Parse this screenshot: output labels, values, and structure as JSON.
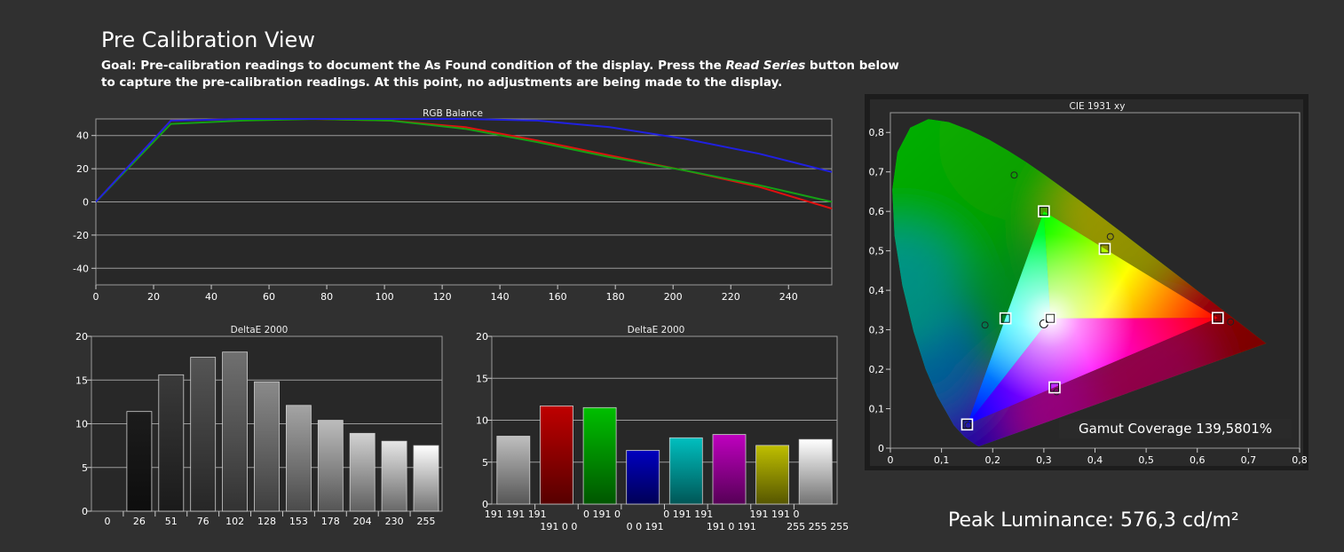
{
  "page": {
    "title": "Pre Calibration View",
    "goal_prefix": "Goal: Pre-calibration readings to document the As Found condition of the display. Press the ",
    "goal_emphasis": "Read Series",
    "goal_suffix": " button below to capture the pre-calibration readings. At this point, no adjustments are being made to the display.",
    "peak_luminance": "Peak Luminance: 576,3 cd/m²",
    "gamut_coverage": "Gamut Coverage 139,5801%"
  },
  "colors": {
    "background": "#303030",
    "plot_background": "#282828",
    "grid": "#9a9a9a",
    "red": "#e01010",
    "green": "#15a015",
    "blue": "#2020e0"
  },
  "chart_data": [
    {
      "type": "line",
      "title": "RGB Balance",
      "xlim": [
        0,
        255
      ],
      "ylim": [
        -50,
        50
      ],
      "xticks": [
        0,
        20,
        40,
        60,
        80,
        100,
        120,
        140,
        160,
        180,
        200,
        220,
        240
      ],
      "yticks": [
        40,
        20,
        0,
        -20,
        -40
      ],
      "grid": true,
      "series": [
        {
          "color": "#e01010",
          "x": [
            0,
            26,
            51,
            76,
            102,
            128,
            153,
            178,
            204,
            230,
            255
          ],
          "y": [
            0,
            49,
            50,
            50,
            49,
            45,
            37,
            28,
            19,
            9,
            -4
          ]
        },
        {
          "color": "#15a015",
          "x": [
            0,
            26,
            51,
            76,
            102,
            128,
            153,
            178,
            204,
            230,
            255
          ],
          "y": [
            0,
            47,
            49,
            50,
            49,
            44,
            36,
            27,
            19,
            10,
            0
          ]
        },
        {
          "color": "#2020e0",
          "x": [
            0,
            26,
            51,
            76,
            102,
            128,
            153,
            178,
            204,
            230,
            255
          ],
          "y": [
            0,
            49,
            50,
            50,
            50,
            50,
            49,
            45,
            38,
            29,
            18
          ]
        }
      ]
    },
    {
      "type": "bar",
      "title": "DeltaE 2000",
      "ylim": [
        0,
        20
      ],
      "yticks": [
        0,
        5,
        10,
        15,
        20
      ],
      "grid": true,
      "categories": [
        "0",
        "26",
        "51",
        "76",
        "102",
        "128",
        "153",
        "178",
        "204",
        "230",
        "255"
      ],
      "values": [
        0,
        11.4,
        15.6,
        17.6,
        18.2,
        14.8,
        12.1,
        10.4,
        8.9,
        8.0,
        7.5
      ],
      "colors": [
        "#000000",
        "#1c1c1c",
        "#3a3a3a",
        "#555555",
        "#707070",
        "#8a8a8a",
        "#a4a4a4",
        "#bcbcbc",
        "#d2d2d2",
        "#e6e6e6",
        "#ffffff"
      ]
    },
    {
      "type": "bar",
      "title": "DeltaE 2000",
      "ylim": [
        0,
        20
      ],
      "yticks": [
        0,
        5,
        10,
        15,
        20
      ],
      "grid": true,
      "categories": [
        "191 191 191",
        "191 0 0",
        "0 191 0",
        "0 0 191",
        "0 191 191",
        "191 0 191",
        "191 191 0",
        "255 255 255"
      ],
      "values": [
        8.1,
        11.7,
        11.5,
        6.4,
        7.9,
        8.3,
        7.0,
        7.7
      ],
      "colors": [
        "#bfbfbf",
        "#bf0000",
        "#00bf00",
        "#0000bf",
        "#00bfbf",
        "#bf00bf",
        "#bfbf00",
        "#ffffff"
      ]
    },
    {
      "type": "scatter",
      "title": "CIE 1931 xy",
      "xlim": [
        0,
        0.8
      ],
      "ylim": [
        0,
        0.85
      ],
      "xticks": [
        "0",
        "0,1",
        "0,2",
        "0,3",
        "0,4",
        "0,5",
        "0,6",
        "0,7",
        "0,8"
      ],
      "yticks": [
        "0",
        "0,1",
        "0,2",
        "0,3",
        "0,4",
        "0,5",
        "0,6",
        "0,7",
        "0,8"
      ],
      "grid": false,
      "targets": [
        {
          "name": "Red",
          "x": 0.64,
          "y": 0.33
        },
        {
          "name": "Green",
          "x": 0.3,
          "y": 0.6
        },
        {
          "name": "Blue",
          "x": 0.15,
          "y": 0.06
        },
        {
          "name": "White",
          "x": 0.3127,
          "y": 0.329
        },
        {
          "name": "Cyan",
          "x": 0.225,
          "y": 0.329
        },
        {
          "name": "Magenta",
          "x": 0.321,
          "y": 0.154
        },
        {
          "name": "Yellow",
          "x": 0.419,
          "y": 0.505
        }
      ],
      "measured": [
        {
          "name": "Red",
          "x": 0.665,
          "y": 0.32
        },
        {
          "name": "Green",
          "x": 0.242,
          "y": 0.692
        },
        {
          "name": "Blue",
          "x": 0.152,
          "y": 0.058
        },
        {
          "name": "White",
          "x": 0.3,
          "y": 0.315
        },
        {
          "name": "Cyan",
          "x": 0.185,
          "y": 0.312
        },
        {
          "name": "Magenta",
          "x": 0.325,
          "y": 0.143
        },
        {
          "name": "Yellow",
          "x": 0.43,
          "y": 0.536
        }
      ]
    }
  ]
}
